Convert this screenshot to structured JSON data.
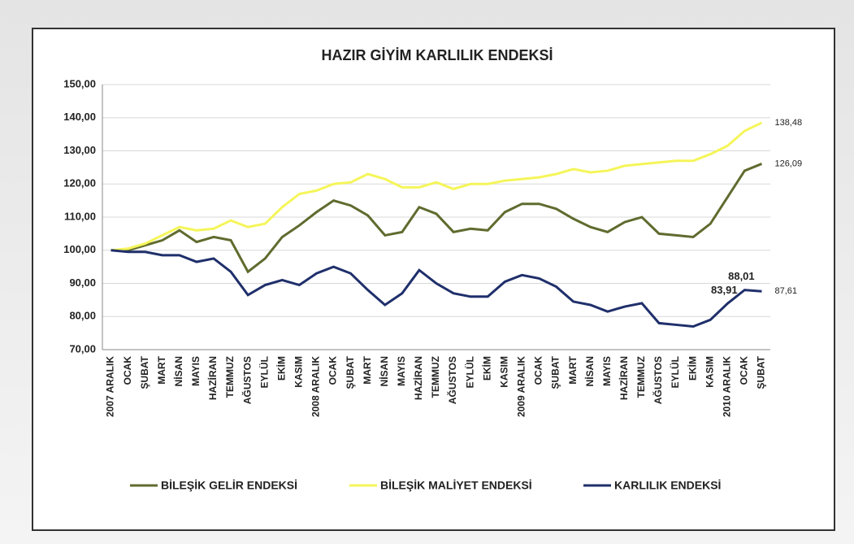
{
  "chart_data": {
    "type": "line",
    "title": "HAZIR GİYİM KARLILIK ENDEKSİ",
    "categories": [
      "2007 ARALIK",
      "OCAK",
      "ŞUBAT",
      "MART",
      "NİSAN",
      "MAYIS",
      "HAZİRAN",
      "TEMMUZ",
      "AĞUSTOS",
      "EYLÜL",
      "EKİM",
      "KASIM",
      "2008 ARALIK",
      "OCAK",
      "ŞUBAT",
      "MART",
      "NİSAN",
      "MAYIS",
      "HAZİRAN",
      "TEMMUZ",
      "AĞUSTOS",
      "EYLÜL",
      "EKİM",
      "KASIM",
      "2009 ARALIK",
      "OCAK",
      "ŞUBAT",
      "MART",
      "NİSAN",
      "MAYIS",
      "HAZİRAN",
      "TEMMUZ",
      "AĞUSTOS",
      "EYLÜL",
      "EKİM",
      "KASIM",
      "2010 ARALIK",
      "OCAK",
      "ŞUBAT"
    ],
    "series": [
      {
        "name": "BİLEŞİK GELİR ENDEKSİ",
        "color": "#5f6b2e",
        "values": [
          100,
          100,
          101.5,
          103,
          106,
          102.5,
          104,
          103,
          93.5,
          97.5,
          104,
          107.5,
          111.5,
          115,
          113.5,
          110.5,
          104.5,
          105.5,
          113,
          111,
          105.5,
          106.5,
          106,
          111.5,
          114,
          114,
          112.5,
          109.5,
          107,
          105.5,
          108.5,
          110,
          105,
          104.5,
          104,
          108,
          116,
          124,
          126.09
        ],
        "value_labels": [
          null,
          null,
          null,
          null,
          null,
          null,
          null,
          null,
          null,
          null,
          null,
          null,
          null,
          null,
          null,
          null,
          null,
          null,
          null,
          null,
          null,
          null,
          null,
          null,
          null,
          null,
          null,
          null,
          null,
          null,
          null,
          null,
          null,
          null,
          null,
          null,
          null,
          null,
          "126,09"
        ]
      },
      {
        "name": "BİLEŞİK MALİYET ENDEKSİ",
        "color": "#f5f55a",
        "values": [
          100,
          100.5,
          102,
          104.5,
          107,
          106,
          106.5,
          109,
          107,
          108,
          113,
          117,
          118,
          120,
          120.5,
          123,
          121.5,
          119,
          119,
          120.5,
          118.5,
          120,
          120,
          121,
          121.5,
          122,
          123,
          124.5,
          123.5,
          124,
          125.5,
          126,
          126.5,
          127,
          127,
          129,
          131.5,
          136,
          138.48
        ],
        "value_labels": [
          null,
          null,
          null,
          null,
          null,
          null,
          null,
          null,
          null,
          null,
          null,
          null,
          null,
          null,
          null,
          null,
          null,
          null,
          null,
          null,
          null,
          null,
          null,
          null,
          null,
          null,
          null,
          null,
          null,
          null,
          null,
          null,
          null,
          null,
          null,
          null,
          null,
          null,
          "138,48"
        ]
      },
      {
        "name": "KARLILIK ENDEKSİ",
        "color": "#1f2f6b",
        "values": [
          100,
          99.5,
          99.5,
          98.5,
          98.5,
          96.5,
          97.5,
          93.5,
          86.5,
          89.5,
          91,
          89.5,
          93,
          95,
          93,
          88,
          83.5,
          87,
          94,
          90,
          87,
          86,
          86,
          90.5,
          92.5,
          91.5,
          89,
          84.5,
          83.5,
          81.5,
          83,
          84,
          78,
          77.5,
          77,
          79,
          83.91,
          88.01,
          87.61
        ],
        "value_labels": [
          null,
          null,
          null,
          null,
          null,
          null,
          null,
          null,
          null,
          null,
          null,
          null,
          null,
          null,
          null,
          null,
          null,
          null,
          null,
          null,
          null,
          null,
          null,
          null,
          null,
          null,
          null,
          null,
          null,
          null,
          null,
          null,
          null,
          null,
          null,
          null,
          "83,91",
          "88,01",
          "87,61"
        ]
      }
    ],
    "ylim": [
      70,
      150
    ],
    "yticks": [
      {
        "value": 70,
        "label": "70,00"
      },
      {
        "value": 80,
        "label": "80,00"
      },
      {
        "value": 90,
        "label": "90,00"
      },
      {
        "value": 100,
        "label": "100,00"
      },
      {
        "value": 110,
        "label": "110,00"
      },
      {
        "value": 120,
        "label": "120,00"
      },
      {
        "value": 130,
        "label": "130,00"
      },
      {
        "value": 140,
        "label": "140,00"
      },
      {
        "value": 150,
        "label": "150,00"
      }
    ],
    "grid": true,
    "legend": "bottom"
  }
}
